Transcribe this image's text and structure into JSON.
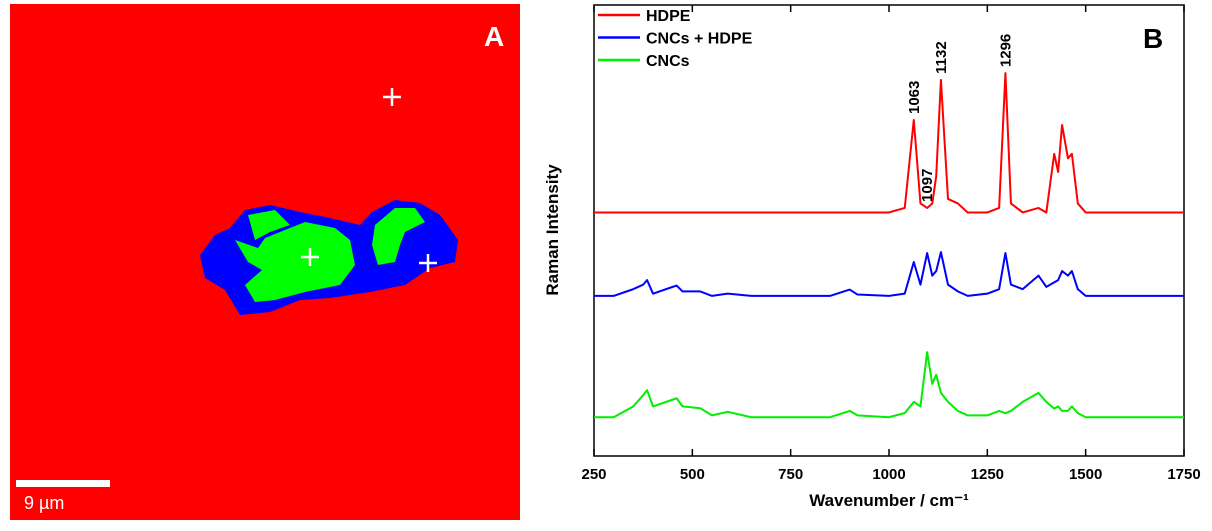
{
  "panel_a": {
    "label": "A",
    "scale_bar": "9 µm"
  },
  "chart_data": {
    "type": "line",
    "panel_label": "B",
    "x_label": "Wavenumber / cm⁻¹",
    "y_label": "Raman Intensity",
    "x": [
      250,
      300,
      350,
      375,
      385,
      400,
      450,
      460,
      475,
      520,
      550,
      590,
      650,
      750,
      850,
      900,
      920,
      1000,
      1040,
      1063,
      1080,
      1097,
      1110,
      1120,
      1132,
      1150,
      1175,
      1200,
      1250,
      1280,
      1296,
      1310,
      1340,
      1380,
      1400,
      1420,
      1430,
      1440,
      1455,
      1465,
      1480,
      1500,
      1600,
      1750
    ],
    "series": [
      {
        "name": "HDPE",
        "color": "#ff0000",
        "values": [
          54,
          54,
          54,
          54,
          54,
          54,
          54,
          54,
          54,
          54,
          54,
          54,
          54,
          54,
          54,
          54,
          54,
          54,
          55,
          74.5,
          56,
          55,
          56,
          62,
          83.4,
          57,
          56,
          54,
          54,
          55,
          84.9,
          56,
          54,
          55,
          54,
          67,
          63,
          73.4,
          66,
          67,
          56,
          54,
          54,
          54
        ]
      },
      {
        "name": "CNCs + HDPE",
        "color": "#0000ff",
        "values": [
          35.5,
          35.5,
          37,
          38,
          39,
          36,
          37.5,
          37.8,
          36.5,
          36.5,
          35.5,
          36,
          35.5,
          35.5,
          35.5,
          36.9,
          35.8,
          35.5,
          36,
          43,
          38,
          45,
          40,
          41,
          45.2,
          38,
          36.5,
          35.5,
          36,
          37,
          45,
          38,
          37,
          40,
          37.5,
          38.5,
          39,
          41,
          40,
          41,
          37,
          35.5,
          35.5,
          35.5
        ]
      },
      {
        "name": "CNCs",
        "color": "#00ee00",
        "values": [
          8.6,
          8.6,
          11,
          13.5,
          14.6,
          11,
          12.5,
          12.8,
          11,
          10.6,
          9,
          9.8,
          8.6,
          8.6,
          8.6,
          10,
          9,
          8.6,
          9.5,
          12,
          11,
          23,
          16,
          18,
          14,
          12,
          10,
          9,
          9,
          10,
          9.5,
          10,
          12,
          14,
          12,
          10.5,
          11,
          10,
          10,
          11,
          9.5,
          8.6,
          8.6,
          8.6
        ]
      }
    ],
    "peak_labels": [
      {
        "x": 1063,
        "label": "1063"
      },
      {
        "x": 1132,
        "label": "1132"
      },
      {
        "x": 1296,
        "label": "1296"
      },
      {
        "x": 1097,
        "label": "1097"
      }
    ],
    "xlim": [
      250,
      1750
    ],
    "ylim": [
      0,
      100
    ],
    "xticks": [
      250,
      500,
      750,
      1000,
      1250,
      1500,
      1750
    ],
    "legend": "top-left"
  }
}
